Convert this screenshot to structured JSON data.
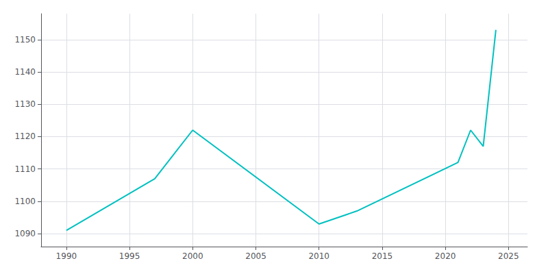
{
  "chart_data": {
    "type": "line",
    "x": [
      1990,
      1997,
      2000,
      2010,
      2013,
      2021,
      2022,
      2023,
      2024
    ],
    "values": [
      1091,
      1107,
      1122,
      1093,
      1097,
      1112,
      1122,
      1117,
      1153
    ],
    "color": "#00C0C0",
    "xlim": [
      1988,
      2026.5
    ],
    "ylim": [
      1086,
      1158
    ],
    "xticks": [
      1990,
      1995,
      2000,
      2005,
      2010,
      2015,
      2020,
      2025
    ],
    "yticks": [
      1090,
      1100,
      1110,
      1120,
      1130,
      1140,
      1150
    ],
    "grid": true
  }
}
